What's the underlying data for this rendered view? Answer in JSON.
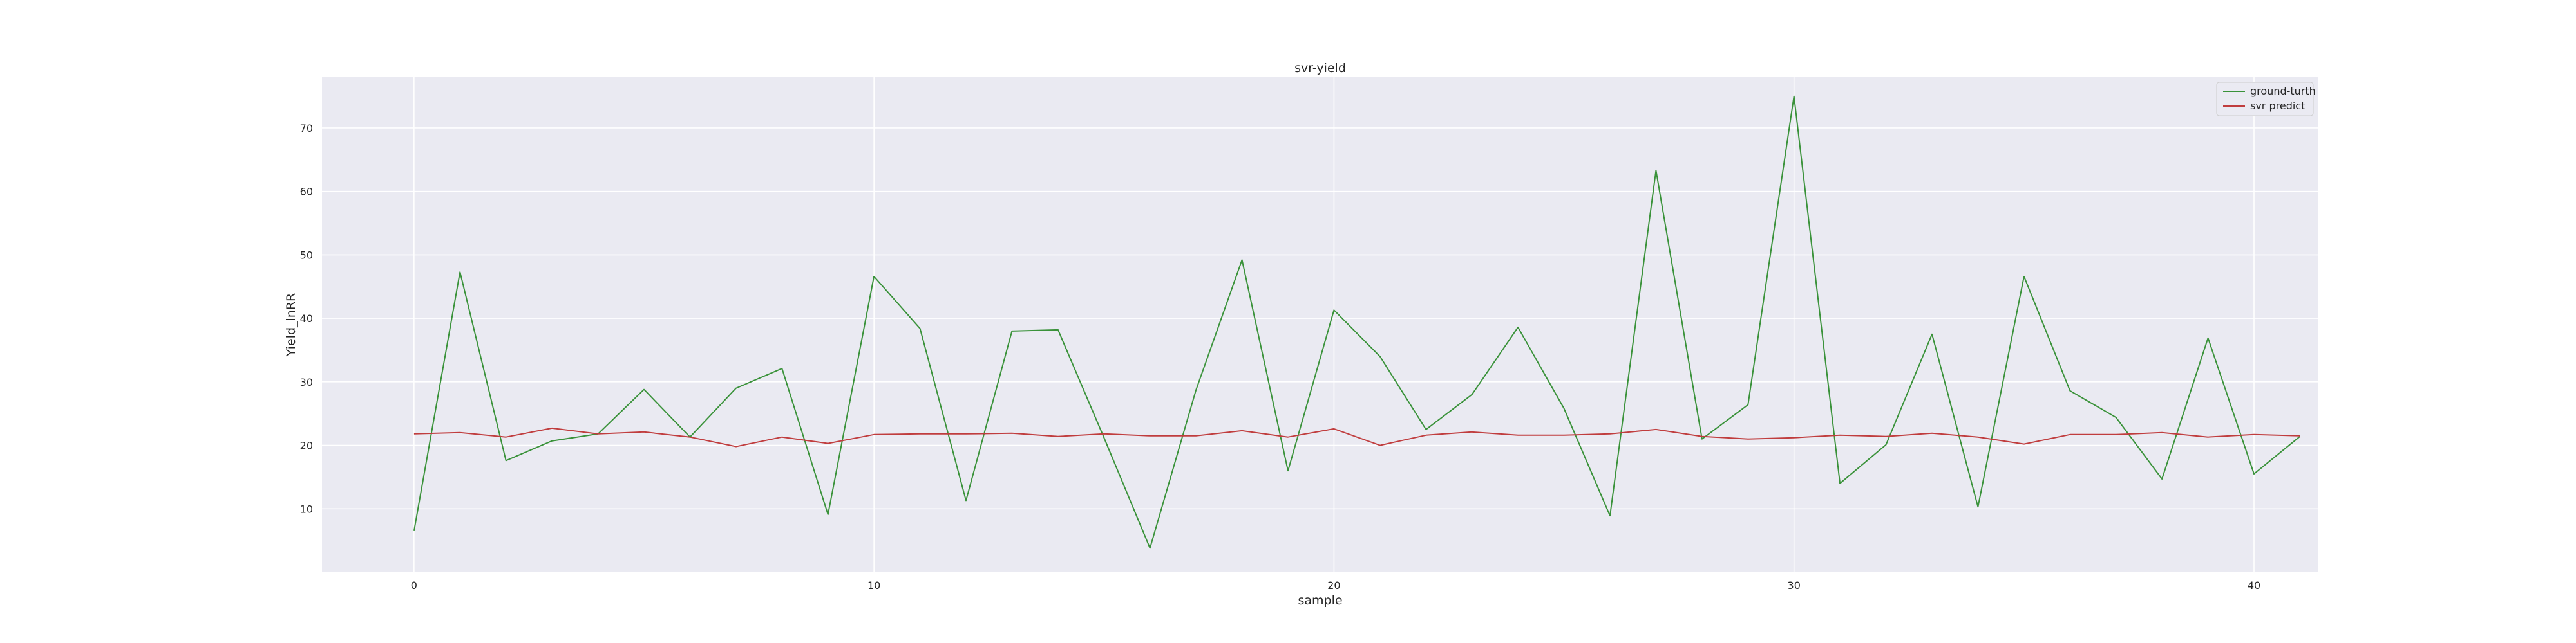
{
  "chart_data": {
    "type": "line",
    "title": "svr-yield",
    "xlabel": "sample",
    "ylabel": "Yield_lnRR",
    "xlim": [
      -2,
      41.4
    ],
    "ylim": [
      0,
      78
    ],
    "xticks": [
      0,
      10,
      20,
      30,
      40
    ],
    "yticks": [
      10,
      20,
      30,
      40,
      50,
      60,
      70
    ],
    "grid": true,
    "legend_position": "top-right",
    "x": [
      0,
      1,
      2,
      3,
      4,
      5,
      6,
      7,
      8,
      9,
      10,
      11,
      12,
      13,
      14,
      15,
      16,
      17,
      18,
      19,
      20,
      21,
      22,
      23,
      24,
      25,
      26,
      27,
      28,
      29,
      30,
      31,
      32,
      33,
      34,
      35,
      36,
      37,
      38,
      39,
      40,
      41
    ],
    "series": [
      {
        "name": "ground-turth",
        "color": "#3a923a",
        "values": [
          6.5,
          47.3,
          17.6,
          20.7,
          21.8,
          28.8,
          21.3,
          29.0,
          32.1,
          9.1,
          46.6,
          38.4,
          11.3,
          38.0,
          38.2,
          21.2,
          3.8,
          28.7,
          49.2,
          16.0,
          41.3,
          34.0,
          22.5,
          28.0,
          38.6,
          25.8,
          8.9,
          63.3,
          21.0,
          26.4,
          75.0,
          14.0,
          20.1,
          37.5,
          10.3,
          46.6,
          28.6,
          24.4,
          14.7,
          36.9,
          15.5,
          21.4
        ]
      },
      {
        "name": "svr predict",
        "color": "#c03d3e",
        "values": [
          21.8,
          22.0,
          21.3,
          22.7,
          21.8,
          22.1,
          21.3,
          19.8,
          21.3,
          20.3,
          21.7,
          21.8,
          21.8,
          21.9,
          21.4,
          21.8,
          21.5,
          21.5,
          22.3,
          21.3,
          22.6,
          20.0,
          21.6,
          22.1,
          21.6,
          21.6,
          21.8,
          22.5,
          21.4,
          21.0,
          21.2,
          21.6,
          21.4,
          21.9,
          21.3,
          20.2,
          21.7,
          21.7,
          22.0,
          21.3,
          21.7,
          21.5
        ]
      }
    ]
  }
}
